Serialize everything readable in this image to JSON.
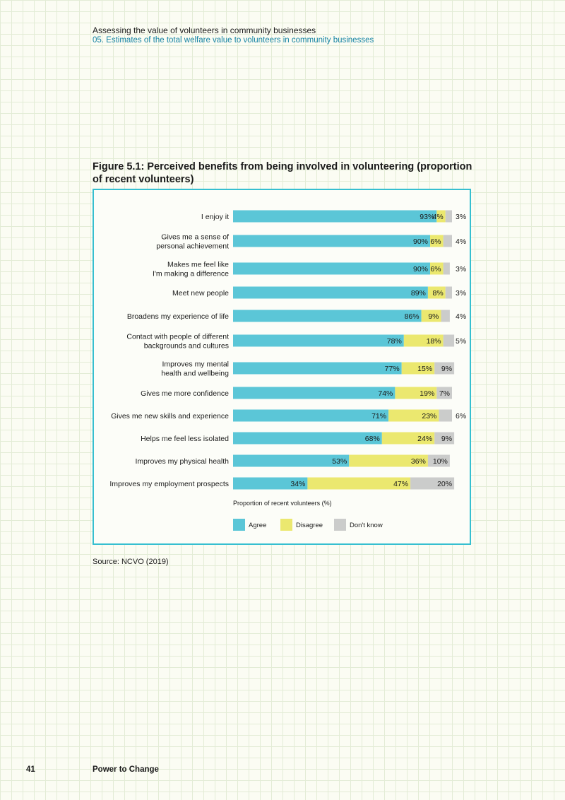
{
  "header": {
    "title": "Assessing the value of volunteers in community businesses",
    "subtitle": "05. Estimates of the total welfare value to volunteers in community businesses"
  },
  "figure_title": "Figure 5.1: Perceived benefits from being involved in volunteering (proportion of recent volunteers)",
  "source": "Source: NCVO (2019)",
  "footer": {
    "page_number": "41",
    "brand": "Power to Change"
  },
  "colors": {
    "agree": "#5bc6d7",
    "disagree": "#ebe86f",
    "dont_know": "#cbcccb",
    "frame": "#36bfd0"
  },
  "chart_data": {
    "type": "bar",
    "orientation": "horizontal",
    "stacked": true,
    "title": "",
    "xlabel": "Proportion of recent volunteers (%)",
    "ylabel": "",
    "xlim": [
      0,
      100
    ],
    "legend_position": "bottom",
    "grid": false,
    "categories": [
      [
        "I enjoy it"
      ],
      [
        "Gives me a sense of",
        "personal achievement"
      ],
      [
        "Makes me feel like",
        "I'm making a difference"
      ],
      [
        "Meet new people"
      ],
      [
        "Broadens my experience of life"
      ],
      [
        "Contact with people of different",
        "backgrounds and cultures"
      ],
      [
        "Improves my mental",
        "health and wellbeing"
      ],
      [
        "Gives me more confidence"
      ],
      [
        "Gives me new skills and experience"
      ],
      [
        "Helps me feel less isolated"
      ],
      [
        "Improves my physical health"
      ],
      [
        "Improves my employment prospects"
      ]
    ],
    "series": [
      {
        "name": "Agree",
        "values": [
          93,
          90,
          90,
          89,
          86,
          78,
          77,
          74,
          71,
          68,
          53,
          34
        ]
      },
      {
        "name": "Disagree",
        "values": [
          4,
          6,
          6,
          8,
          9,
          18,
          15,
          19,
          23,
          24,
          36,
          47
        ]
      },
      {
        "name": "Don't know",
        "values": [
          3,
          4,
          3,
          3,
          4,
          5,
          9,
          7,
          6,
          9,
          10,
          20
        ]
      }
    ]
  }
}
